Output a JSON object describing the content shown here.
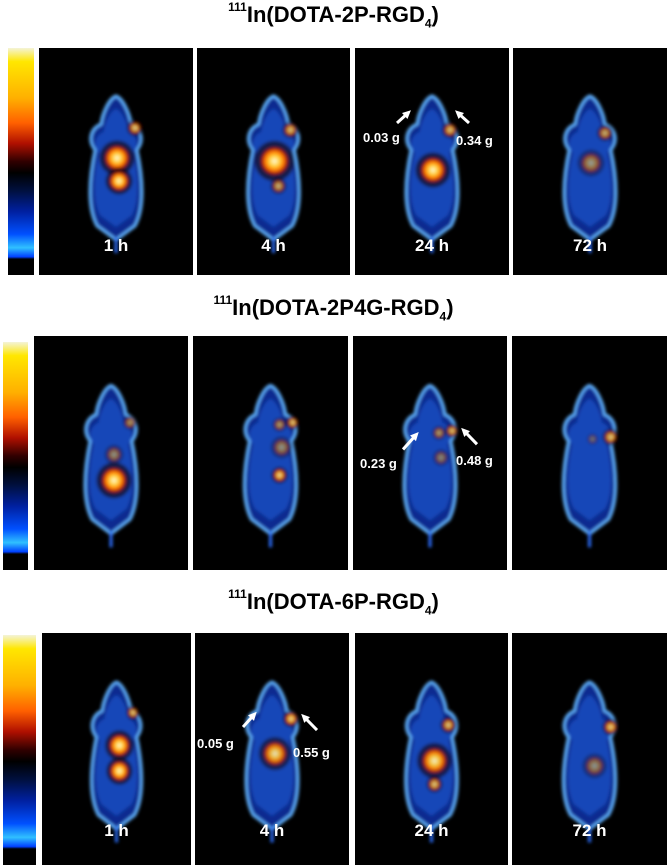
{
  "rows": [
    {
      "title": {
        "sup": "111",
        "main": "In(DOTA-2P-RGD",
        "sub": "4",
        "end": ")"
      },
      "panels": [
        {
          "time": "1 h"
        },
        {
          "time": "4 h"
        },
        {
          "time": "24 h"
        },
        {
          "time": "72 h"
        }
      ],
      "annotation": {
        "panel": 2,
        "left": "0.03 g",
        "right": "0.34 g"
      }
    },
    {
      "title": {
        "sup": "111",
        "main": "In(DOTA-2P4G-RGD",
        "sub": "4",
        "end": ")"
      },
      "panels": [
        {
          "time": ""
        },
        {
          "time": ""
        },
        {
          "time": ""
        },
        {
          "time": ""
        }
      ],
      "annotation": {
        "panel": 2,
        "left": "0.23 g",
        "right": "0.48 g"
      }
    },
    {
      "title": {
        "sup": "111",
        "main": "In(DOTA-6P-RGD",
        "sub": "4",
        "end": ")"
      },
      "panels": [
        {
          "time": "1 h"
        },
        {
          "time": "4 h"
        },
        {
          "time": "24 h"
        },
        {
          "time": "72 h"
        }
      ],
      "annotation": {
        "panel": 1,
        "left": "0.05 g",
        "right": "0.55 g"
      }
    }
  ],
  "colors": {
    "background": "#000000",
    "body": "#1a5fd8",
    "outline": "#5fb0ff",
    "hot": "#ffe060"
  },
  "colorbar": {
    "scale": [
      "#f4f4d8",
      "#ffe700",
      "#ffb000",
      "#ff6000",
      "#b01000",
      "#000000",
      "#0020a0",
      "#0050ff",
      "#30c0ff",
      "#000000"
    ]
  }
}
